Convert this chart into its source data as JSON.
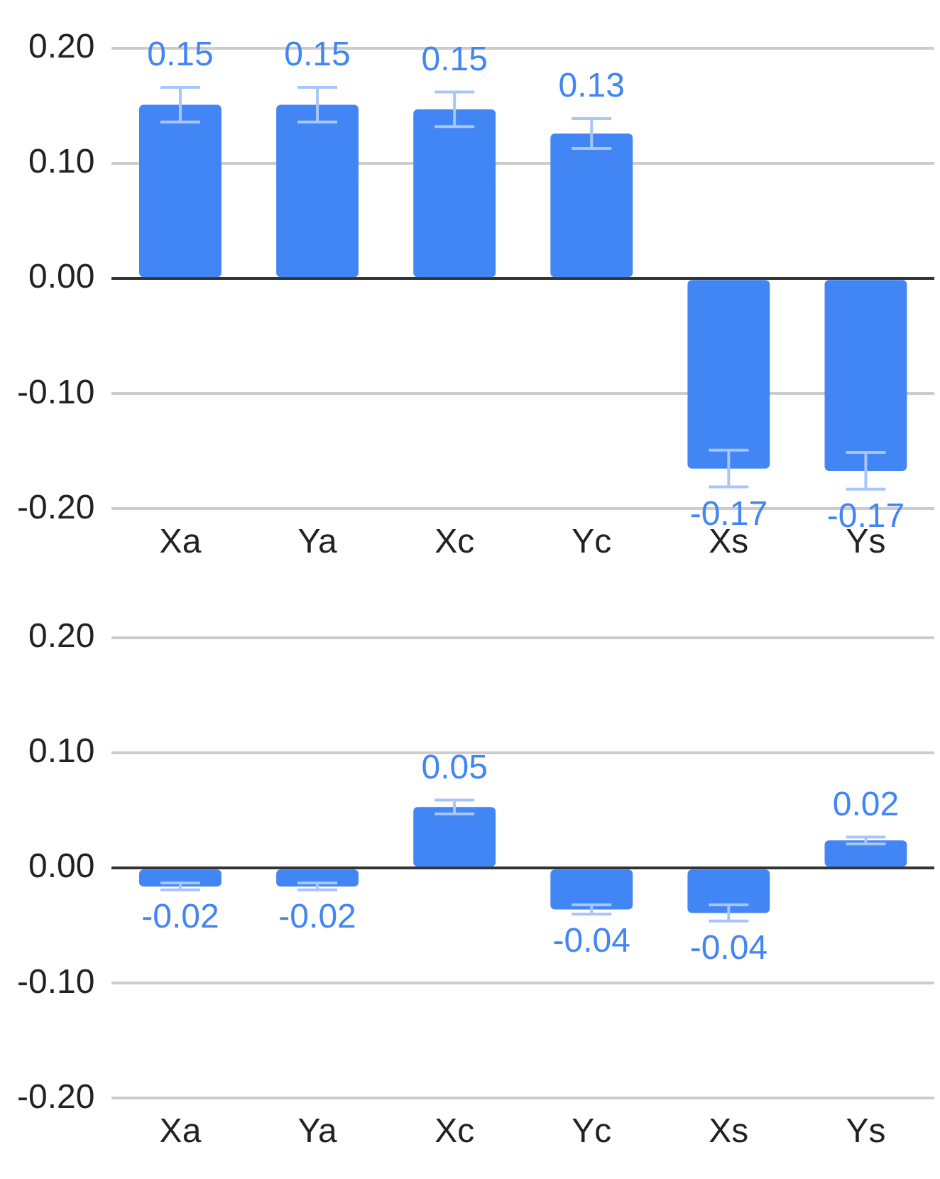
{
  "chart_data": [
    {
      "type": "bar",
      "categories": [
        "Xa",
        "Ya",
        "Xc",
        "Yc",
        "Xs",
        "Ys"
      ],
      "series": [
        {
          "color": "#4285f4",
          "values": [
            0.151,
            0.151,
            0.147,
            0.126,
            -0.165,
            -0.167
          ],
          "errors": [
            0.015,
            0.015,
            0.015,
            0.013,
            0.016,
            0.016
          ],
          "value_labels": [
            "0.15",
            "0.15",
            "0.15",
            "0.13",
            "-0.17",
            "-0.17"
          ]
        }
      ],
      "ylim": [
        -0.2,
        0.2
      ],
      "yticks": [
        {
          "value": -0.2,
          "label": "-0.20"
        },
        {
          "value": -0.1,
          "label": "-0.10"
        },
        {
          "value": 0,
          "label": "0.00"
        },
        {
          "value": 0.1,
          "label": "0.10"
        },
        {
          "value": 0.2,
          "label": "0.20"
        }
      ],
      "grid": "y",
      "legend": false
    },
    {
      "type": "bar",
      "categories": [
        "Xa",
        "Ya",
        "Xc",
        "Yc",
        "Xs",
        "Ys"
      ],
      "series": [
        {
          "color": "#4285f4",
          "values": [
            -0.016,
            -0.016,
            0.053,
            -0.036,
            -0.039,
            0.024
          ],
          "errors": [
            0.003,
            0.003,
            0.006,
            0.004,
            0.007,
            0.003
          ],
          "value_labels": [
            "-0.02",
            "-0.02",
            "0.05",
            "-0.04",
            "-0.04",
            "0.02"
          ]
        }
      ],
      "ylim": [
        -0.2,
        0.2
      ],
      "yticks": [
        {
          "value": -0.2,
          "label": "-0.20"
        },
        {
          "value": -0.1,
          "label": "-0.10"
        },
        {
          "value": 0,
          "label": "0.00"
        },
        {
          "value": 0.1,
          "label": "0.10"
        },
        {
          "value": 0.2,
          "label": "0.20"
        }
      ],
      "grid": "y",
      "legend": false
    }
  ]
}
